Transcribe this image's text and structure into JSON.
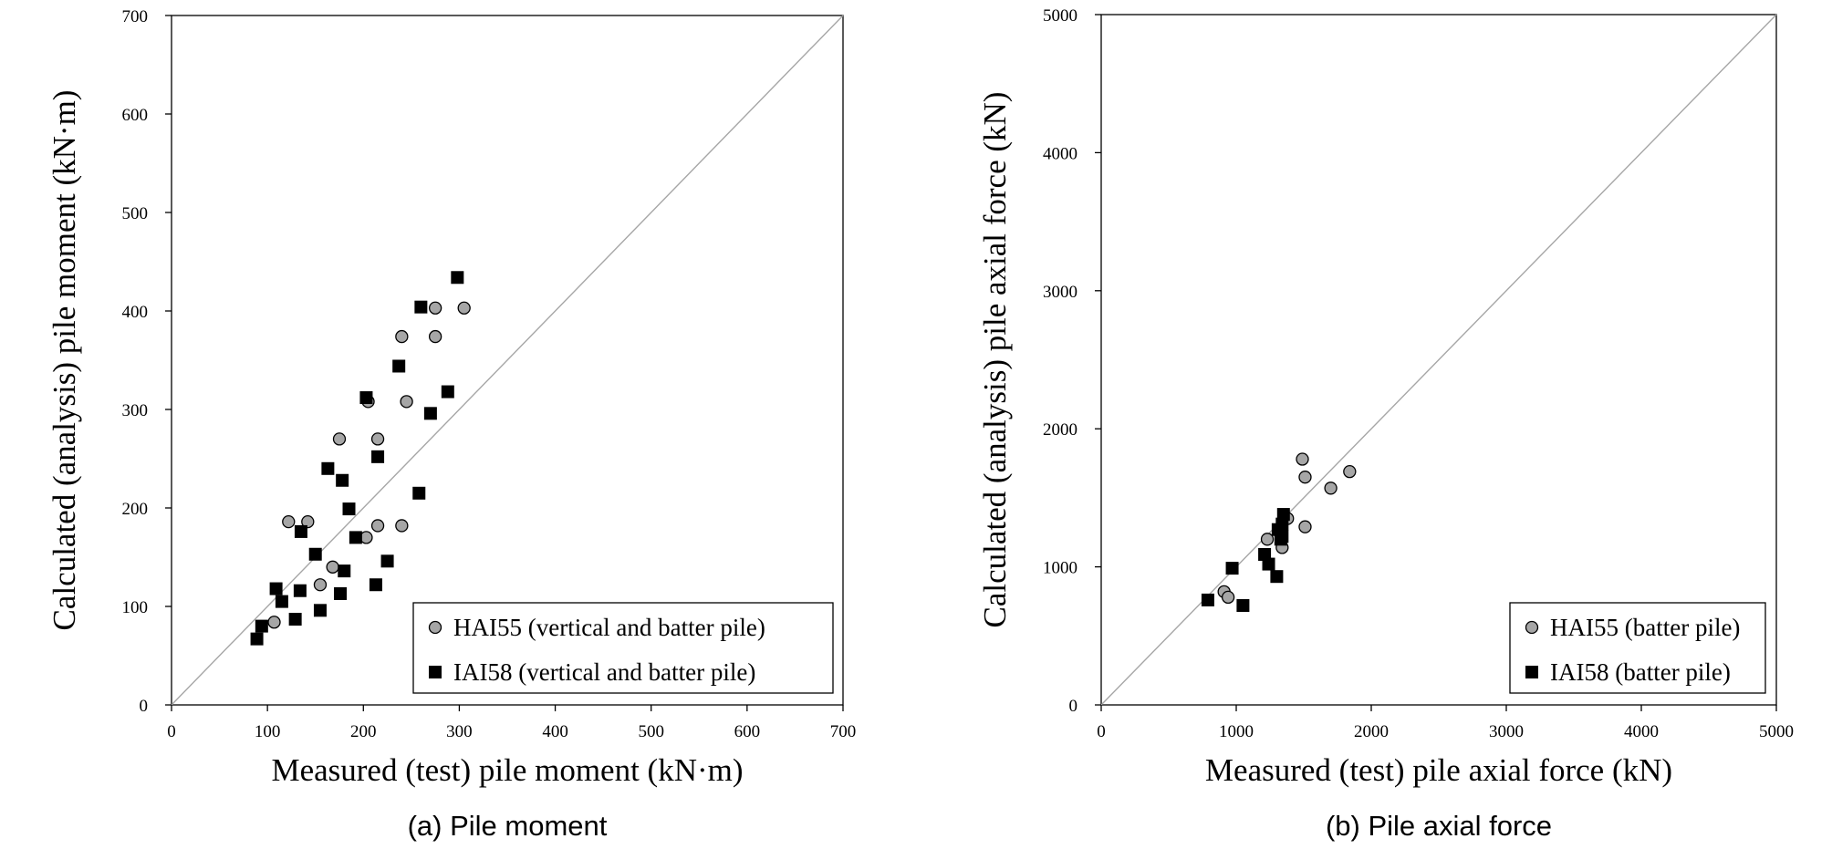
{
  "chart_data": [
    {
      "type": "scatter",
      "caption": "(a) Pile moment",
      "xlabel": "Measured (test) pile moment (kN·m)",
      "ylabel": "Calculated (analysis) pile moment (kN·m)",
      "xlim": [
        0,
        700
      ],
      "ylim": [
        0,
        700
      ],
      "xticks": [
        0,
        100,
        200,
        300,
        400,
        500,
        600,
        700
      ],
      "yticks": [
        0,
        100,
        200,
        300,
        400,
        500,
        600,
        700
      ],
      "reference_line": "y = x",
      "grid": false,
      "legend_position": "bottom-right",
      "series": [
        {
          "name": "HAI55 (vertical and batter pile)",
          "marker": "circle",
          "color": "#a6a6a6",
          "points": [
            [
              107,
              84
            ],
            [
              122,
              186
            ],
            [
              142,
              186
            ],
            [
              155,
              122
            ],
            [
              168,
              140
            ],
            [
              175,
              270
            ],
            [
              203,
              170
            ],
            [
              205,
              308
            ],
            [
              215,
              270
            ],
            [
              215,
              182
            ],
            [
              240,
              182
            ],
            [
              240,
              374
            ],
            [
              245,
              308
            ],
            [
              275,
              403
            ],
            [
              275,
              374
            ],
            [
              305,
              403
            ]
          ]
        },
        {
          "name": "IAI58 (vertical and batter pile)",
          "marker": "square",
          "color": "#000000",
          "points": [
            [
              89,
              67
            ],
            [
              94,
              80
            ],
            [
              109,
              118
            ],
            [
              115,
              105
            ],
            [
              129,
              87
            ],
            [
              134,
              116
            ],
            [
              135,
              176
            ],
            [
              150,
              153
            ],
            [
              155,
              96
            ],
            [
              163,
              240
            ],
            [
              176,
              113
            ],
            [
              178,
              228
            ],
            [
              180,
              136
            ],
            [
              185,
              199
            ],
            [
              192,
              170
            ],
            [
              203,
              312
            ],
            [
              213,
              122
            ],
            [
              215,
              252
            ],
            [
              225,
              146
            ],
            [
              237,
              344
            ],
            [
              258,
              215
            ],
            [
              260,
              404
            ],
            [
              270,
              296
            ],
            [
              288,
              318
            ],
            [
              298,
              434
            ]
          ]
        }
      ]
    },
    {
      "type": "scatter",
      "caption": "(b) Pile axial force",
      "xlabel": "Measured (test) pile axial force (kN)",
      "ylabel": "Calculated (analysis) pile axial force (kN)",
      "xlim": [
        0,
        5000
      ],
      "ylim": [
        0,
        5000
      ],
      "xticks": [
        0,
        1000,
        2000,
        3000,
        4000,
        5000
      ],
      "yticks": [
        0,
        1000,
        2000,
        3000,
        4000,
        5000
      ],
      "reference_line": "y = x",
      "grid": false,
      "legend_position": "bottom-right",
      "series": [
        {
          "name": "HAI55 (batter pile)",
          "marker": "circle",
          "color": "#a6a6a6",
          "points": [
            [
              910,
              820
            ],
            [
              940,
              780
            ],
            [
              1230,
              1200
            ],
            [
              1340,
              1140
            ],
            [
              1380,
              1350
            ],
            [
              1490,
              1780
            ],
            [
              1510,
              1650
            ],
            [
              1510,
              1290
            ],
            [
              1700,
              1570
            ],
            [
              1840,
              1690
            ]
          ]
        },
        {
          "name": "IAI58 (batter pile)",
          "marker": "square",
          "color": "#000000",
          "points": [
            [
              790,
              760
            ],
            [
              970,
              990
            ],
            [
              1050,
              720
            ],
            [
              1210,
              1090
            ],
            [
              1240,
              1020
            ],
            [
              1300,
              930
            ],
            [
              1310,
              1270
            ],
            [
              1330,
              1200
            ],
            [
              1340,
              1220
            ],
            [
              1350,
              1380
            ],
            [
              1340,
              1310
            ]
          ]
        }
      ]
    }
  ]
}
